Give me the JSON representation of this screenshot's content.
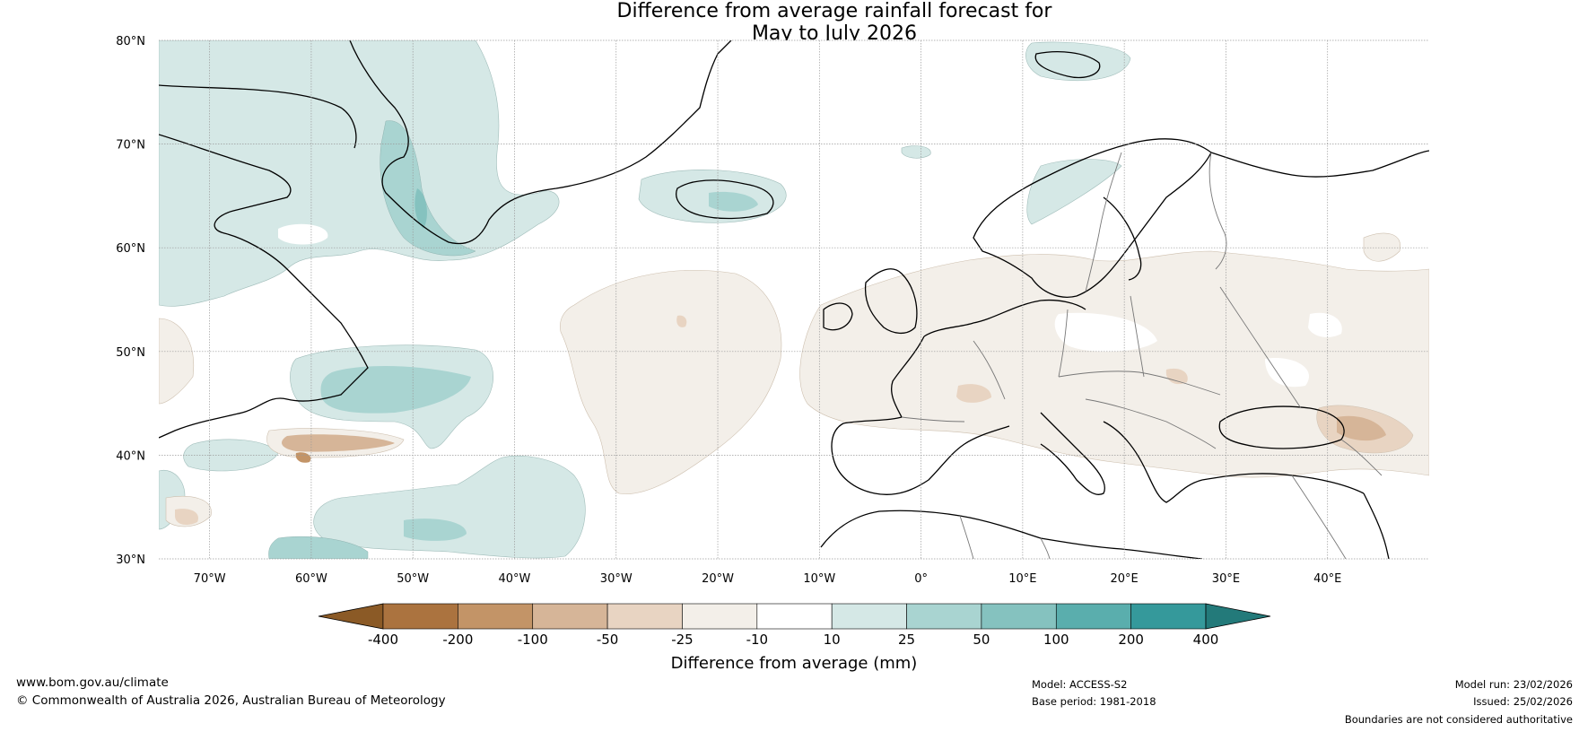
{
  "title": {
    "line1": "Difference from average rainfall forecast for",
    "line2": "May to July 2026"
  },
  "map": {
    "lat_labels": [
      "80°N",
      "70°N",
      "60°N",
      "50°N",
      "40°N",
      "30°N"
    ],
    "lon_labels": [
      "70°W",
      "60°W",
      "50°W",
      "40°W",
      "30°W",
      "20°W",
      "10°W",
      "0°",
      "10°E",
      "20°E",
      "30°E",
      "40°E"
    ],
    "lat_range": [
      30,
      80
    ],
    "lon_range": [
      -75,
      50
    ]
  },
  "colorbar": {
    "ticks": [
      "-400",
      "-200",
      "-100",
      "-50",
      "-25",
      "-10",
      "10",
      "25",
      "50",
      "100",
      "200",
      "400"
    ],
    "colors": [
      "#8b5a26",
      "#ab733f",
      "#c39467",
      "#d6b598",
      "#e8d4c2",
      "#f3efe9",
      "#ffffff",
      "#d5e8e6",
      "#a9d4d1",
      "#85c2bf",
      "#5aaead",
      "#35999b",
      "#237a7a"
    ],
    "label": "Difference from average (mm)"
  },
  "footer": {
    "website": "www.bom.gov.au/climate",
    "copyright": "© Commonwealth of Australia 2026, Australian Bureau of Meteorology",
    "model": "Model: ACCESS-S2",
    "base_period": "Base period: 1981-2018",
    "model_run": "Model run: 23/02/2026",
    "issued": "Issued: 25/02/2026",
    "disclaimer": "Boundaries are not considered authoritative"
  }
}
